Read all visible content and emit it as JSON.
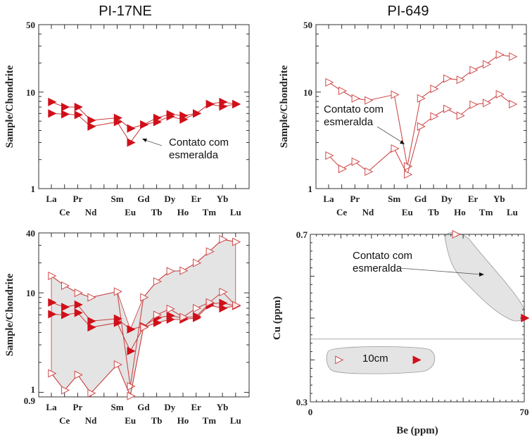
{
  "chart_data": [
    {
      "type": "line",
      "title": "PI-17NE",
      "ylabel": "Sample/Chondrite",
      "yscale": "log",
      "ylim": [
        1,
        50
      ],
      "yticks": [
        "1",
        "10",
        "50"
      ],
      "categories": [
        "La",
        "Ce",
        "Pr",
        "Nd",
        "Sm",
        "Eu",
        "Gd",
        "Tb",
        "Dy",
        "Ho",
        "Er",
        "Tm",
        "Yb",
        "Lu"
      ],
      "series": [
        {
          "marker": "filled-triangle",
          "values": [
            7.9,
            7.0,
            7.0,
            5.1,
            5.4,
            4.2,
            4.6,
            5.4,
            5.9,
            5.7,
            6.0,
            7.5,
            7.9,
            7.5
          ]
        },
        {
          "marker": "filled-triangle",
          "values": [
            6.0,
            5.9,
            5.8,
            4.4,
            4.9,
            3.0,
            4.6,
            4.9,
            5.6,
            5.2,
            6.0,
            7.5,
            7.1,
            7.5
          ]
        }
      ],
      "annotation": [
        "Contato com",
        "esmeralda"
      ],
      "grid": false
    },
    {
      "type": "line",
      "title": "PI-649",
      "ylabel": "Sample/Chondrite",
      "yscale": "log",
      "ylim": [
        1,
        50
      ],
      "yticks": [
        "1",
        "10",
        "50"
      ],
      "categories": [
        "La",
        "Ce",
        "Pr",
        "Nd",
        "Sm",
        "Eu",
        "Gd",
        "Tb",
        "Dy",
        "Ho",
        "Er",
        "Tm",
        "Yb",
        "Lu"
      ],
      "series": [
        {
          "marker": "open-triangle",
          "values": [
            12.6,
            10.3,
            8.6,
            8.2,
            9.4,
            1.7,
            8.6,
            10.8,
            13.8,
            13.4,
            16.9,
            19.4,
            24.4,
            23.3
          ]
        },
        {
          "marker": "open-triangle",
          "values": [
            2.2,
            1.6,
            1.9,
            1.5,
            2.6,
            1.4,
            4.4,
            5.6,
            6.7,
            5.7,
            7.4,
            7.7,
            9.5,
            7.5
          ]
        }
      ],
      "annotation": [
        "Contato com",
        "esmeralda"
      ],
      "grid": false
    },
    {
      "type": "area",
      "title": "",
      "ylabel": "Sample/Chondrite",
      "yscale": "log",
      "ylim": [
        0.9,
        40
      ],
      "yticks": [
        "0.9",
        "1",
        "10",
        "40"
      ],
      "categories": [
        "La",
        "Ce",
        "Pr",
        "Nd",
        "Sm",
        "Eu",
        "Gd",
        "Tb",
        "Dy",
        "Ho",
        "Er",
        "Tm",
        "Yb",
        "Lu"
      ],
      "envelope_fill": "#e4e4e4",
      "series": [
        {
          "marker": "filled-triangle",
          "values": [
            8.0,
            7.2,
            7.6,
            5.2,
            5.5,
            4.3,
            4.6,
            5.6,
            5.9,
            5.6,
            5.8,
            7.8,
            7.9,
            7.4
          ]
        },
        {
          "marker": "filled-triangle",
          "values": [
            6.1,
            6.0,
            6.3,
            4.5,
            5.0,
            2.6,
            4.5,
            5.0,
            5.4,
            5.4,
            5.6,
            7.5,
            7.0,
            7.4
          ]
        },
        {
          "marker": "open-triangle",
          "values": [
            14.8,
            11.8,
            10.0,
            9.0,
            10.3,
            1.15,
            9.0,
            13.0,
            16.5,
            16.7,
            20.0,
            26.0,
            34.5,
            32.5
          ]
        },
        {
          "marker": "open-triangle",
          "values": [
            1.55,
            1.05,
            1.5,
            0.98,
            1.9,
            0.92,
            4.5,
            6.0,
            6.9,
            5.7,
            7.0,
            8.0,
            10.2,
            7.5
          ]
        }
      ],
      "grid": false
    },
    {
      "type": "scatter",
      "title": "",
      "xlabel": "Be (ppm)",
      "ylabel": "Cu (ppm)",
      "xlim": [
        0,
        70
      ],
      "ylim": [
        0.3,
        0.7
      ],
      "xticks": [
        "0",
        "70"
      ],
      "yticks": [
        "0.3",
        "0.7"
      ],
      "points": [
        {
          "x": 47.5,
          "y": 0.7,
          "marker": "open-triangle"
        },
        {
          "x": 70,
          "y": 0.5,
          "marker": "filled-triangle"
        },
        {
          "x": 9.2,
          "y": 0.4,
          "marker": "open-triangle"
        },
        {
          "x": 34.6,
          "y": 0.4,
          "marker": "filled-triangle"
        }
      ],
      "reference_line_y": 0.45,
      "annotation": [
        "Contato com",
        "esmeralda"
      ],
      "group_label": "10cm",
      "group_fill": "#e4e4e4",
      "grid": false
    }
  ],
  "colors": {
    "marker": "#d0101a",
    "line": "#c83a3a",
    "open_marker": "#d04a4a",
    "axis": "#333333"
  }
}
